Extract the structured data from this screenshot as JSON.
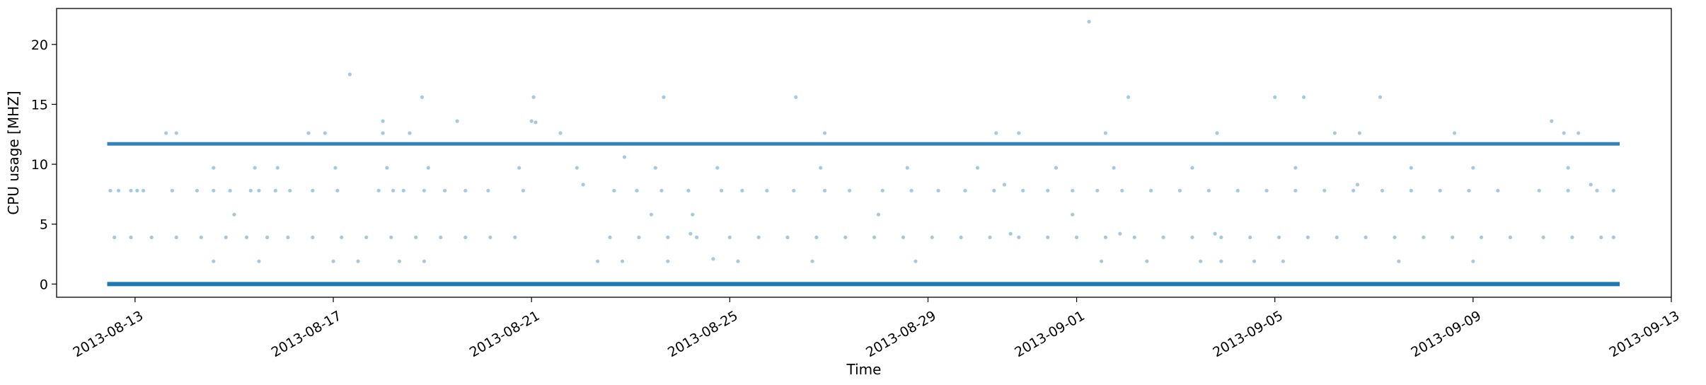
{
  "chart_data": {
    "type": "scatter",
    "title": "",
    "xlabel": "Time",
    "ylabel": "CPU usage [MHZ]",
    "x_axis_type": "date",
    "xlim": [
      "2013-08-11T10:00",
      "2013-09-13T00:00"
    ],
    "ylim": [
      -1.1,
      23.0
    ],
    "x_ticks": [
      "2013-08-13",
      "2013-08-17",
      "2013-08-21",
      "2013-08-25",
      "2013-08-29",
      "2013-09-01",
      "2013-09-05",
      "2013-09-09",
      "2013-09-13"
    ],
    "y_ticks": [
      0,
      5,
      10,
      15,
      20
    ],
    "grid": false,
    "marker_color": "#1f77b4",
    "marker_alpha": 0.4,
    "data_range": [
      "2013-08-12T10:30",
      "2013-09-11T23:00"
    ],
    "baseline_levels": [
      0,
      11.7
    ],
    "series": [
      {
        "points": [
          [
            "2013-08-12T12:00",
            7.8
          ],
          [
            "2013-08-12T16:00",
            7.8
          ],
          [
            "2013-08-12T22:00",
            7.8
          ],
          [
            "2013-08-13T01:00",
            7.8
          ],
          [
            "2013-08-13T04:00",
            7.8
          ],
          [
            "2013-08-13T18:00",
            7.8
          ],
          [
            "2013-08-14T06:00",
            7.8
          ],
          [
            "2013-08-14T14:00",
            7.8
          ],
          [
            "2013-08-14T22:00",
            7.8
          ],
          [
            "2013-08-15T08:00",
            7.8
          ],
          [
            "2013-08-15T12:00",
            7.8
          ],
          [
            "2013-08-15T20:00",
            7.8
          ],
          [
            "2013-08-16T03:00",
            7.8
          ],
          [
            "2013-08-16T14:00",
            7.8
          ],
          [
            "2013-08-17T02:00",
            7.8
          ],
          [
            "2013-08-17T22:00",
            7.8
          ],
          [
            "2013-08-18T05:00",
            7.8
          ],
          [
            "2013-08-18T10:00",
            7.8
          ],
          [
            "2013-08-18T20:00",
            7.8
          ],
          [
            "2013-08-19T06:00",
            7.8
          ],
          [
            "2013-08-19T16:00",
            7.8
          ],
          [
            "2013-08-20T03:00",
            7.8
          ],
          [
            "2013-08-20T20:00",
            7.8
          ],
          [
            "2013-08-22T16:00",
            7.8
          ],
          [
            "2013-08-23T03:00",
            7.8
          ],
          [
            "2013-08-23T15:00",
            7.8
          ],
          [
            "2013-08-24T04:00",
            7.8
          ],
          [
            "2013-08-24T20:00",
            7.8
          ],
          [
            "2013-08-25T06:00",
            7.8
          ],
          [
            "2013-08-25T18:00",
            7.8
          ],
          [
            "2013-08-26T07:00",
            7.8
          ],
          [
            "2013-08-26T22:00",
            7.8
          ],
          [
            "2013-08-27T10:00",
            7.8
          ],
          [
            "2013-08-28T02:00",
            7.8
          ],
          [
            "2013-08-28T16:00",
            7.8
          ],
          [
            "2013-08-29T05:00",
            7.8
          ],
          [
            "2013-08-29T18:00",
            7.8
          ],
          [
            "2013-08-30T08:00",
            7.8
          ],
          [
            "2013-08-30T22:00",
            7.8
          ],
          [
            "2013-08-31T10:00",
            7.8
          ],
          [
            "2013-08-31T22:00",
            7.8
          ],
          [
            "2013-09-01T10:00",
            7.8
          ],
          [
            "2013-09-01T22:00",
            7.8
          ],
          [
            "2013-09-02T12:00",
            7.8
          ],
          [
            "2013-09-03T02:00",
            7.8
          ],
          [
            "2013-09-03T16:00",
            7.8
          ],
          [
            "2013-09-04T06:00",
            7.8
          ],
          [
            "2013-09-04T20:00",
            7.8
          ],
          [
            "2013-09-05T10:00",
            7.8
          ],
          [
            "2013-09-06T00:00",
            7.8
          ],
          [
            "2013-09-06T14:00",
            7.8
          ],
          [
            "2013-09-07T04:00",
            7.8
          ],
          [
            "2013-09-07T18:00",
            7.8
          ],
          [
            "2013-09-08T08:00",
            7.8
          ],
          [
            "2013-09-08T22:00",
            7.8
          ],
          [
            "2013-09-09T12:00",
            7.8
          ],
          [
            "2013-09-10T08:00",
            7.8
          ],
          [
            "2013-09-10T22:00",
            7.8
          ],
          [
            "2013-09-11T12:00",
            7.8
          ],
          [
            "2013-09-11T20:00",
            7.8
          ],
          [
            "2013-08-12T14:00",
            3.9
          ],
          [
            "2013-08-12T22:00",
            3.9
          ],
          [
            "2013-08-13T08:00",
            3.9
          ],
          [
            "2013-08-13T20:00",
            3.9
          ],
          [
            "2013-08-14T08:00",
            3.9
          ],
          [
            "2013-08-14T20:00",
            3.9
          ],
          [
            "2013-08-15T06:00",
            3.9
          ],
          [
            "2013-08-15T16:00",
            3.9
          ],
          [
            "2013-08-16T02:00",
            3.9
          ],
          [
            "2013-08-16T14:00",
            3.9
          ],
          [
            "2013-08-17T04:00",
            3.9
          ],
          [
            "2013-08-17T16:00",
            3.9
          ],
          [
            "2013-08-18T04:00",
            3.9
          ],
          [
            "2013-08-18T16:00",
            3.9
          ],
          [
            "2013-08-19T04:00",
            3.9
          ],
          [
            "2013-08-19T16:00",
            3.9
          ],
          [
            "2013-08-20T04:00",
            3.9
          ],
          [
            "2013-08-20T16:00",
            3.9
          ],
          [
            "2013-08-22T14:00",
            3.9
          ],
          [
            "2013-08-23T04:00",
            3.9
          ],
          [
            "2013-08-23T18:00",
            3.9
          ],
          [
            "2013-08-24T08:00",
            3.9
          ],
          [
            "2013-08-25T00:00",
            3.9
          ],
          [
            "2013-08-25T14:00",
            3.9
          ],
          [
            "2013-08-26T04:00",
            3.9
          ],
          [
            "2013-08-26T18:00",
            3.9
          ],
          [
            "2013-08-27T08:00",
            3.9
          ],
          [
            "2013-08-27T22:00",
            3.9
          ],
          [
            "2013-08-28T12:00",
            3.9
          ],
          [
            "2013-08-29T02:00",
            3.9
          ],
          [
            "2013-08-29T16:00",
            3.9
          ],
          [
            "2013-08-30T06:00",
            3.9
          ],
          [
            "2013-08-30T20:00",
            3.9
          ],
          [
            "2013-08-31T10:00",
            3.9
          ],
          [
            "2013-09-01T00:00",
            3.9
          ],
          [
            "2013-09-01T14:00",
            3.9
          ],
          [
            "2013-09-02T04:00",
            3.9
          ],
          [
            "2013-09-02T18:00",
            3.9
          ],
          [
            "2013-09-03T08:00",
            3.9
          ],
          [
            "2013-09-03T22:00",
            3.9
          ],
          [
            "2013-09-04T12:00",
            3.9
          ],
          [
            "2013-09-05T02:00",
            3.9
          ],
          [
            "2013-09-05T16:00",
            3.9
          ],
          [
            "2013-09-06T06:00",
            3.9
          ],
          [
            "2013-09-06T20:00",
            3.9
          ],
          [
            "2013-09-07T10:00",
            3.9
          ],
          [
            "2013-09-08T00:00",
            3.9
          ],
          [
            "2013-09-08T14:00",
            3.9
          ],
          [
            "2013-09-09T04:00",
            3.9
          ],
          [
            "2013-09-09T18:00",
            3.9
          ],
          [
            "2013-09-10T10:00",
            3.9
          ],
          [
            "2013-09-11T00:00",
            3.9
          ],
          [
            "2013-09-11T14:00",
            3.9
          ],
          [
            "2013-09-11T20:00",
            3.9
          ],
          [
            "2013-08-13T15:00",
            12.6
          ],
          [
            "2013-08-13T20:00",
            12.6
          ],
          [
            "2013-08-16T12:00",
            12.6
          ],
          [
            "2013-08-16T20:00",
            12.6
          ],
          [
            "2013-08-18T00:00",
            12.6
          ],
          [
            "2013-08-18T13:00",
            12.6
          ],
          [
            "2013-08-21T14:00",
            12.6
          ],
          [
            "2013-08-26T22:00",
            12.6
          ],
          [
            "2013-08-30T09:00",
            12.6
          ],
          [
            "2013-08-30T20:00",
            12.6
          ],
          [
            "2013-09-01T14:00",
            12.6
          ],
          [
            "2013-09-03T20:00",
            12.6
          ],
          [
            "2013-09-06T05:00",
            12.6
          ],
          [
            "2013-09-06T17:00",
            12.6
          ],
          [
            "2013-09-08T15:00",
            12.6
          ],
          [
            "2013-09-10T20:00",
            12.6
          ],
          [
            "2013-09-11T03:00",
            12.6
          ],
          [
            "2013-08-17T08:00",
            17.5
          ],
          [
            "2013-09-01T06:00",
            21.9
          ],
          [
            "2013-08-18T19:00",
            15.6
          ],
          [
            "2013-08-21T01:00",
            15.6
          ],
          [
            "2013-08-23T16:00",
            15.6
          ],
          [
            "2013-08-26T08:00",
            15.6
          ],
          [
            "2013-09-02T01:00",
            15.6
          ],
          [
            "2013-09-05T00:00",
            15.6
          ],
          [
            "2013-09-05T14:00",
            15.6
          ],
          [
            "2013-09-07T03:00",
            15.6
          ],
          [
            "2013-08-19T12:00",
            13.6
          ],
          [
            "2013-08-18T00:00",
            13.6
          ],
          [
            "2013-08-21T00:00",
            13.6
          ],
          [
            "2013-08-21T02:00",
            13.5
          ],
          [
            "2013-09-10T14:00",
            13.6
          ],
          [
            "2013-08-22T21:00",
            10.6
          ],
          [
            "2013-08-14T14:00",
            9.7
          ],
          [
            "2013-08-15T10:00",
            9.7
          ],
          [
            "2013-08-15T21:00",
            9.7
          ],
          [
            "2013-08-17T01:00",
            9.7
          ],
          [
            "2013-08-18T02:00",
            9.7
          ],
          [
            "2013-08-18T22:00",
            9.7
          ],
          [
            "2013-08-20T18:00",
            9.7
          ],
          [
            "2013-08-21T22:00",
            9.7
          ],
          [
            "2013-08-23T12:00",
            9.7
          ],
          [
            "2013-08-24T18:00",
            9.7
          ],
          [
            "2013-08-26T20:00",
            9.7
          ],
          [
            "2013-08-28T14:00",
            9.7
          ],
          [
            "2013-08-30T00:00",
            9.7
          ],
          [
            "2013-08-31T14:00",
            9.7
          ],
          [
            "2013-09-01T18:00",
            9.7
          ],
          [
            "2013-09-03T08:00",
            9.7
          ],
          [
            "2013-09-05T10:00",
            9.7
          ],
          [
            "2013-09-07T18:00",
            9.7
          ],
          [
            "2013-09-09T00:00",
            9.7
          ],
          [
            "2013-09-10T22:00",
            9.7
          ],
          [
            "2013-08-15T00:00",
            5.8
          ],
          [
            "2013-08-23T10:00",
            5.8
          ],
          [
            "2013-08-24T06:00",
            5.8
          ],
          [
            "2013-08-28T00:00",
            5.8
          ],
          [
            "2013-08-31T22:00",
            5.8
          ],
          [
            "2013-08-14T14:00",
            1.9
          ],
          [
            "2013-08-15T12:00",
            1.9
          ],
          [
            "2013-08-17T00:00",
            1.9
          ],
          [
            "2013-08-17T12:00",
            1.9
          ],
          [
            "2013-08-18T08:00",
            1.9
          ],
          [
            "2013-08-18T20:00",
            1.9
          ],
          [
            "2013-08-22T08:00",
            1.9
          ],
          [
            "2013-08-22T20:00",
            1.9
          ],
          [
            "2013-08-23T18:00",
            1.9
          ],
          [
            "2013-08-24T16:00",
            2.1
          ],
          [
            "2013-08-25T04:00",
            1.9
          ],
          [
            "2013-08-26T16:00",
            1.9
          ],
          [
            "2013-08-28T18:00",
            1.9
          ],
          [
            "2013-09-01T12:00",
            1.9
          ],
          [
            "2013-09-02T10:00",
            1.9
          ],
          [
            "2013-09-03T12:00",
            1.9
          ],
          [
            "2013-09-03T22:00",
            1.9
          ],
          [
            "2013-09-04T14:00",
            1.9
          ],
          [
            "2013-09-05T04:00",
            1.9
          ],
          [
            "2013-09-07T12:00",
            1.9
          ],
          [
            "2013-09-09T00:00",
            1.9
          ],
          [
            "2013-08-22T01:00",
            8.3
          ],
          [
            "2013-08-30T13:00",
            8.3
          ],
          [
            "2013-09-06T16:00",
            8.3
          ],
          [
            "2013-09-11T09:00",
            8.3
          ],
          [
            "2013-08-24T05:00",
            4.2
          ],
          [
            "2013-09-01T21:00",
            4.2
          ],
          [
            "2013-09-03T19:00",
            4.2
          ],
          [
            "2013-08-30T16:00",
            4.2
          ]
        ]
      }
    ]
  }
}
